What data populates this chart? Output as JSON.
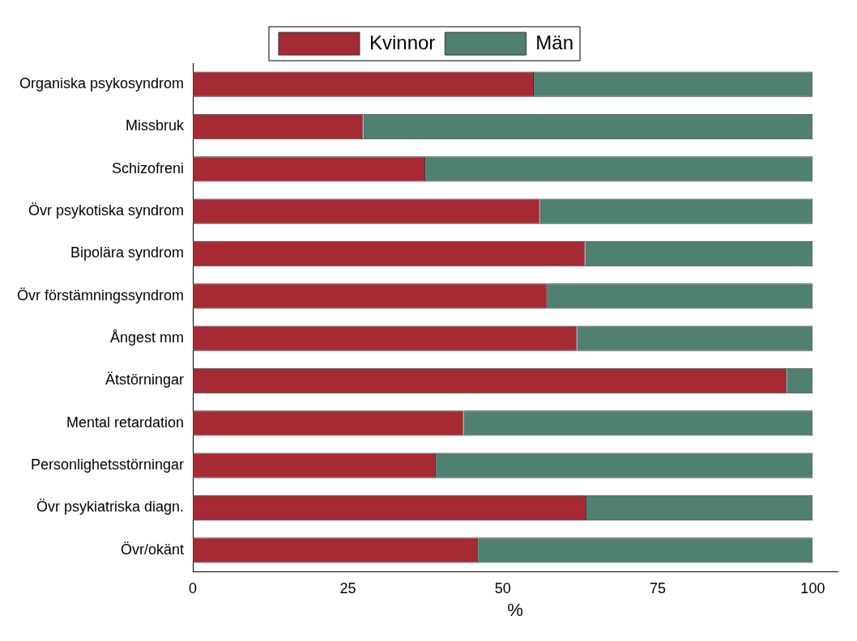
{
  "chart_data": {
    "type": "bar",
    "orientation": "horizontal",
    "stacked": true,
    "xlabel": "%",
    "categories": [
      "Organiska psykosyndrom",
      "Missbruk",
      "Schizofreni",
      "Övr psykotiska syndrom",
      "Bipolära syndrom",
      "Övr förstämningssyndrom",
      "Ångest mm",
      "Ätstörningar",
      "Mental retardation",
      "Personlighetsstörningar",
      "Övr psykiatriska diagn.",
      "Övr/okänt"
    ],
    "series": [
      {
        "name": "Kvinnor",
        "color": "#a52a33",
        "values": [
          55,
          27.5,
          37.5,
          56,
          63.3,
          57.2,
          62,
          95.8,
          43.7,
          39.2,
          63.5,
          46
        ]
      },
      {
        "name": "Män",
        "color": "#4f8070",
        "values": [
          45,
          72.5,
          62.5,
          44,
          36.7,
          42.8,
          38,
          4.2,
          56.3,
          60.8,
          36.5,
          54
        ]
      }
    ],
    "xlim": [
      0,
      104
    ],
    "xticks": [
      0,
      25,
      50,
      75,
      100
    ],
    "grid": false,
    "legend": "top"
  }
}
